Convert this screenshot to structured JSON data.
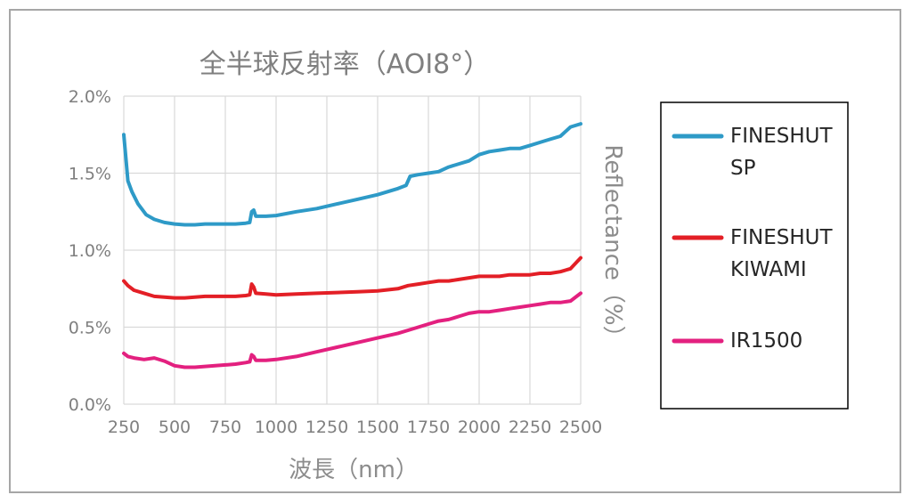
{
  "chart_data": {
    "type": "line",
    "title": "全半球反射率（AOI8°）",
    "xlabel": "波長（nm）",
    "ylabel": "Reflectance（%）",
    "xlim": [
      250,
      2500
    ],
    "ylim": [
      0,
      2.0
    ],
    "x_ticks": [
      "250",
      "500",
      "750",
      "1000",
      "1250",
      "1500",
      "1750",
      "2000",
      "2250",
      "2500"
    ],
    "y_ticks": [
      "0.0%",
      "0.5%",
      "1.0%",
      "1.5%",
      "2.0%"
    ],
    "grid": true,
    "legend_position": "right",
    "series": [
      {
        "name": "FINESHUT SP",
        "legend_lines": [
          "FINESHUT",
          "SP"
        ],
        "color": "#2e9ac7",
        "x": [
          250,
          260,
          270,
          290,
          320,
          360,
          400,
          450,
          500,
          550,
          600,
          650,
          700,
          750,
          800,
          850,
          870,
          880,
          890,
          900,
          950,
          1000,
          1100,
          1200,
          1300,
          1400,
          1500,
          1600,
          1640,
          1660,
          1700,
          1750,
          1800,
          1850,
          1900,
          1950,
          2000,
          2050,
          2100,
          2150,
          2200,
          2250,
          2300,
          2350,
          2400,
          2450,
          2500
        ],
        "y": [
          1.75,
          1.6,
          1.45,
          1.38,
          1.3,
          1.23,
          1.2,
          1.18,
          1.17,
          1.165,
          1.165,
          1.17,
          1.17,
          1.17,
          1.17,
          1.175,
          1.18,
          1.25,
          1.26,
          1.22,
          1.22,
          1.225,
          1.25,
          1.27,
          1.3,
          1.33,
          1.36,
          1.4,
          1.42,
          1.48,
          1.49,
          1.5,
          1.51,
          1.54,
          1.56,
          1.58,
          1.62,
          1.64,
          1.65,
          1.66,
          1.66,
          1.68,
          1.7,
          1.72,
          1.74,
          1.8,
          1.82
        ]
      },
      {
        "name": "FINESHUT KIWAMI",
        "legend_lines": [
          "FINESHUT",
          "KIWAMI"
        ],
        "color": "#e31f26",
        "x": [
          250,
          270,
          300,
          350,
          400,
          450,
          500,
          550,
          600,
          650,
          700,
          750,
          800,
          850,
          870,
          880,
          890,
          900,
          950,
          1000,
          1100,
          1200,
          1300,
          1400,
          1500,
          1600,
          1650,
          1700,
          1750,
          1800,
          1850,
          1900,
          1950,
          2000,
          2050,
          2100,
          2150,
          2200,
          2250,
          2300,
          2350,
          2400,
          2450,
          2500
        ],
        "y": [
          0.8,
          0.77,
          0.74,
          0.72,
          0.7,
          0.695,
          0.69,
          0.69,
          0.695,
          0.7,
          0.7,
          0.7,
          0.7,
          0.705,
          0.71,
          0.78,
          0.76,
          0.72,
          0.715,
          0.71,
          0.715,
          0.72,
          0.725,
          0.73,
          0.735,
          0.75,
          0.77,
          0.78,
          0.79,
          0.8,
          0.8,
          0.81,
          0.82,
          0.83,
          0.83,
          0.83,
          0.84,
          0.84,
          0.84,
          0.85,
          0.85,
          0.86,
          0.88,
          0.95
        ]
      },
      {
        "name": "IR1500",
        "legend_lines": [
          "IR1500"
        ],
        "color": "#e3207f",
        "x": [
          250,
          270,
          300,
          350,
          400,
          450,
          500,
          550,
          600,
          650,
          700,
          750,
          800,
          850,
          870,
          880,
          890,
          900,
          950,
          1000,
          1100,
          1200,
          1300,
          1400,
          1500,
          1600,
          1650,
          1700,
          1750,
          1800,
          1850,
          1900,
          1950,
          2000,
          2050,
          2100,
          2150,
          2200,
          2250,
          2300,
          2350,
          2400,
          2450,
          2500
        ],
        "y": [
          0.33,
          0.31,
          0.3,
          0.29,
          0.3,
          0.28,
          0.25,
          0.24,
          0.24,
          0.245,
          0.25,
          0.255,
          0.26,
          0.27,
          0.275,
          0.32,
          0.31,
          0.285,
          0.285,
          0.29,
          0.31,
          0.34,
          0.37,
          0.4,
          0.43,
          0.46,
          0.48,
          0.5,
          0.52,
          0.54,
          0.55,
          0.57,
          0.59,
          0.6,
          0.6,
          0.61,
          0.62,
          0.63,
          0.64,
          0.65,
          0.66,
          0.66,
          0.67,
          0.72
        ]
      }
    ]
  }
}
